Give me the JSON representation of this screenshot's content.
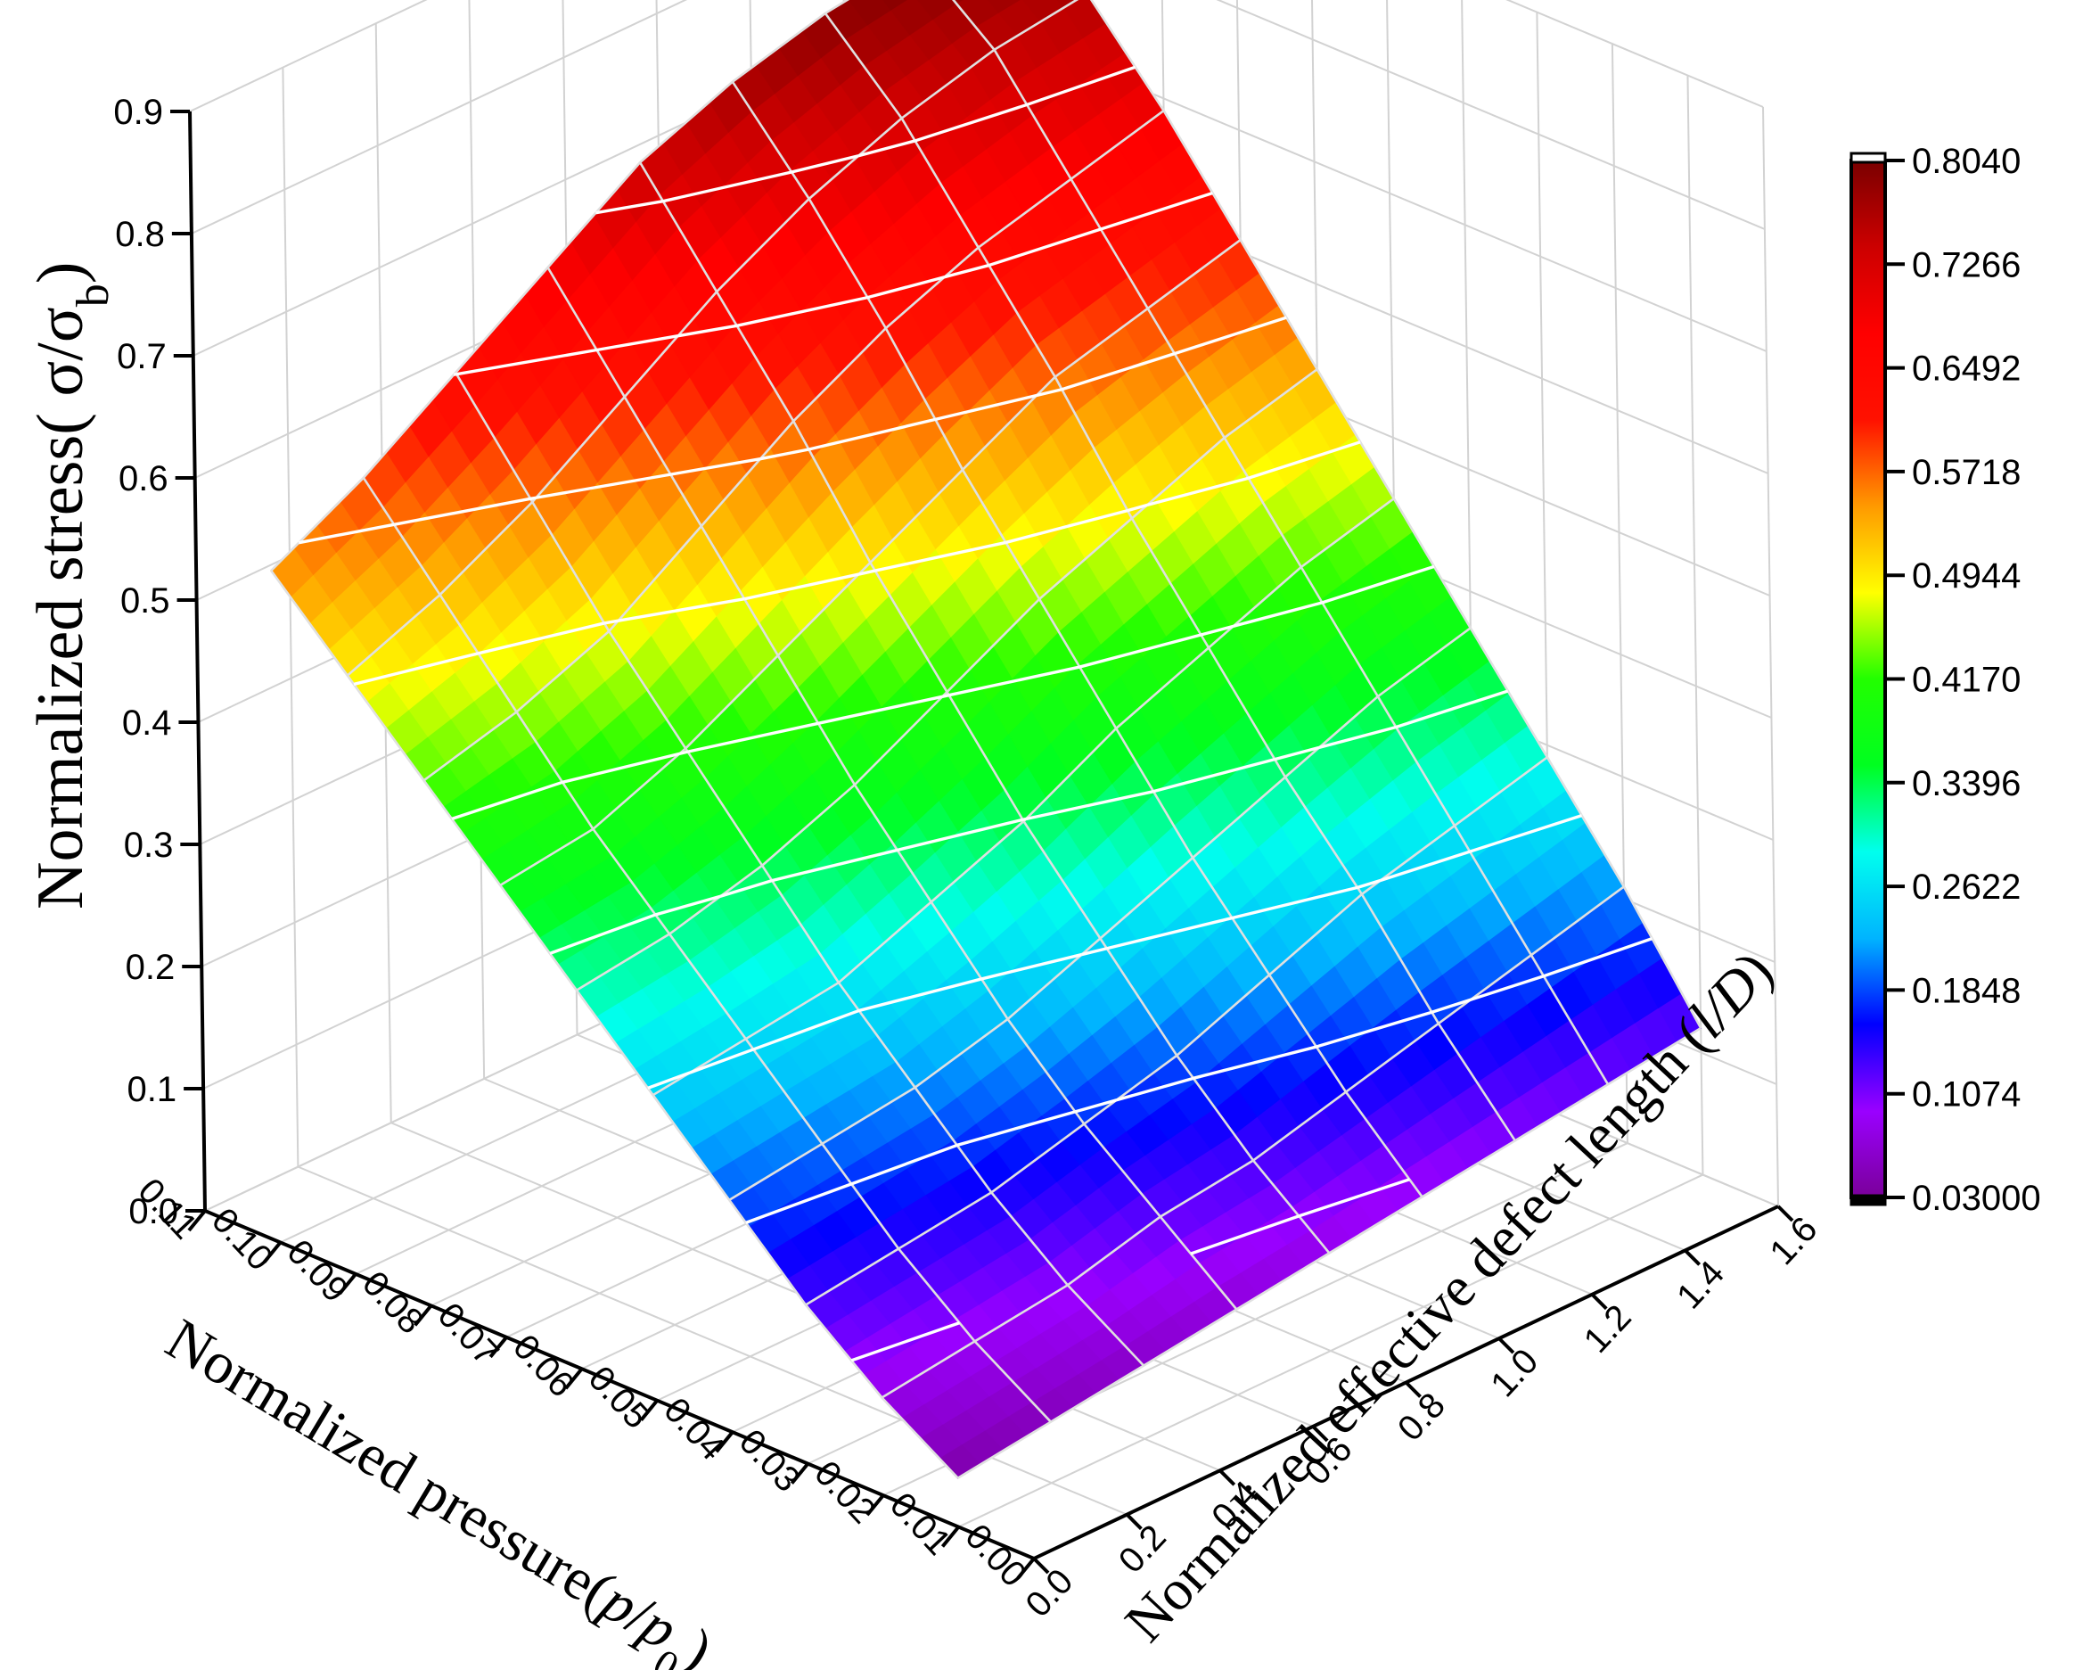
{
  "chart_data": {
    "type": "surface3d",
    "z_title": "Normalized stress( σ/σ",
    "z_title_sub": "b",
    "z_title_close": ")",
    "x_title": "Normalized pressure(",
    "x_title_var": "p",
    "x_title_sep": "/",
    "x_title_var2": "p",
    "x_title_sub": "0",
    "x_title_close": ")",
    "y_title": "Normalized effective defect length (",
    "y_title_var": "l/D",
    "y_title_close": ")",
    "z_ticks": [
      "0.0",
      "0.1",
      "0.2",
      "0.3",
      "0.4",
      "0.5",
      "0.6",
      "0.7",
      "0.8",
      "0.9"
    ],
    "x_ticks": [
      "0.00",
      "0.01",
      "0.02",
      "0.03",
      "0.04",
      "0.05",
      "0.06",
      "0.07",
      "0.08",
      "0.09",
      "0.10",
      "0.11"
    ],
    "y_ticks": [
      "0.0",
      "0.2",
      "0.4",
      "0.6",
      "0.8",
      "1.0",
      "1.2",
      "1.4",
      "1.6"
    ],
    "z_range": [
      0,
      0.9
    ],
    "x_range": [
      0,
      0.11
    ],
    "y_range": [
      0,
      1.6
    ],
    "pressure_values": [
      0.01,
      0.02,
      0.03,
      0.04,
      0.05,
      0.06,
      0.07,
      0.08,
      0.09,
      0.1
    ],
    "length_values": [
      0.0,
      0.2,
      0.4,
      0.6,
      0.8,
      1.0,
      1.2,
      1.4,
      1.6
    ],
    "stress": [
      [
        0.04,
        0.05,
        0.06,
        0.07,
        0.08,
        0.09,
        0.1,
        0.11,
        0.12
      ],
      [
        0.08,
        0.09,
        0.1,
        0.12,
        0.13,
        0.15,
        0.17,
        0.19,
        0.21
      ],
      [
        0.13,
        0.14,
        0.15,
        0.17,
        0.19,
        0.22,
        0.25,
        0.27,
        0.29
      ],
      [
        0.19,
        0.2,
        0.21,
        0.23,
        0.26,
        0.29,
        0.32,
        0.35,
        0.37
      ],
      [
        0.25,
        0.26,
        0.27,
        0.3,
        0.33,
        0.37,
        0.4,
        0.43,
        0.45
      ],
      [
        0.31,
        0.32,
        0.34,
        0.37,
        0.41,
        0.45,
        0.48,
        0.51,
        0.53
      ],
      [
        0.37,
        0.38,
        0.41,
        0.45,
        0.49,
        0.53,
        0.57,
        0.59,
        0.61
      ],
      [
        0.43,
        0.45,
        0.48,
        0.53,
        0.58,
        0.62,
        0.65,
        0.67,
        0.69
      ],
      [
        0.49,
        0.52,
        0.56,
        0.61,
        0.66,
        0.7,
        0.73,
        0.75,
        0.76
      ],
      [
        0.55,
        0.59,
        0.64,
        0.69,
        0.74,
        0.77,
        0.79,
        0.8,
        0.81
      ]
    ],
    "colorbar": {
      "labels": [
        "0.8040",
        "0.7266",
        "0.6492",
        "0.5718",
        "0.4944",
        "0.4170",
        "0.3396",
        "0.2622",
        "0.1848",
        "0.1074",
        "0.03000"
      ],
      "min": 0.03,
      "max": 0.804,
      "colors": [
        "#7a0099",
        "#9a00ff",
        "#0000ff",
        "#00b4ff",
        "#00ffee",
        "#00ff20",
        "#22ff00",
        "#ffff00",
        "#ff9900",
        "#ff1100",
        "#ff0000",
        "#cc0000",
        "#7a0000"
      ]
    },
    "grid": true
  }
}
